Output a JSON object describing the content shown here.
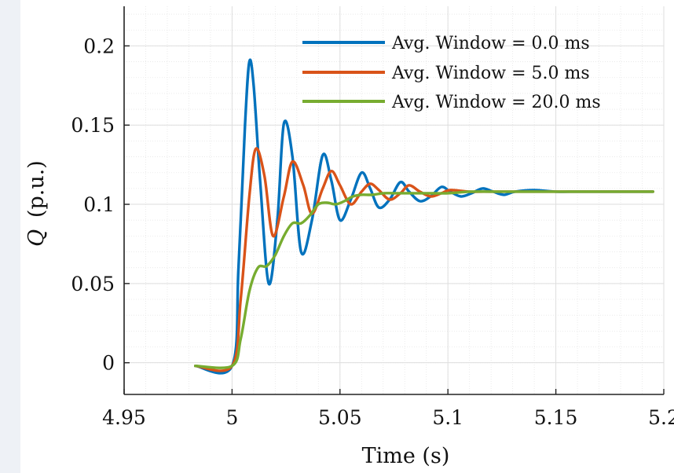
{
  "chart_data": {
    "type": "line",
    "title": "",
    "xlabel": "Time (s)",
    "ylabel_symbol": "Q",
    "ylabel_unit": "(p.u.)",
    "xlim": [
      4.95,
      5.2
    ],
    "ylim": [
      -0.02,
      0.225
    ],
    "xticks": [
      4.95,
      5,
      5.05,
      5.1,
      5.15,
      5.2
    ],
    "xtick_labels": [
      "4.95",
      "5",
      "5.05",
      "5.1",
      "5.15",
      "5.2"
    ],
    "yticks": [
      0,
      0.05,
      0.1,
      0.15,
      0.2
    ],
    "ytick_labels": [
      "0",
      "0.05",
      "0.1",
      "0.15",
      "0.2"
    ],
    "grid": true,
    "legend_position": "top-right",
    "series": [
      {
        "name": "Avg. Window = 0.0 ms",
        "color": "#0072bd",
        "x": [
          4.983,
          5.0,
          5.003,
          5.006,
          5.008,
          5.01,
          5.013,
          5.017,
          5.021,
          5.024,
          5.028,
          5.032,
          5.037,
          5.042,
          5.046,
          5.05,
          5.055,
          5.06,
          5.064,
          5.068,
          5.073,
          5.078,
          5.082,
          5.087,
          5.092,
          5.097,
          5.101,
          5.106,
          5.111,
          5.116,
          5.121,
          5.126,
          5.131,
          5.14,
          5.15,
          5.16,
          5.17,
          5.18,
          5.195
        ],
        "y": [
          -0.002,
          -0.002,
          0.06,
          0.15,
          0.19,
          0.175,
          0.115,
          0.05,
          0.09,
          0.151,
          0.13,
          0.07,
          0.09,
          0.131,
          0.115,
          0.09,
          0.103,
          0.12,
          0.11,
          0.098,
          0.103,
          0.114,
          0.108,
          0.102,
          0.105,
          0.111,
          0.108,
          0.105,
          0.107,
          0.11,
          0.108,
          0.106,
          0.108,
          0.109,
          0.108,
          0.108,
          0.108,
          0.108,
          0.108
        ]
      },
      {
        "name": "Avg. Window = 5.0 ms",
        "color": "#d95319",
        "x": [
          4.983,
          5.0,
          5.004,
          5.008,
          5.011,
          5.015,
          5.019,
          5.024,
          5.028,
          5.033,
          5.037,
          5.042,
          5.046,
          5.05,
          5.055,
          5.06,
          5.064,
          5.068,
          5.073,
          5.078,
          5.082,
          5.087,
          5.092,
          5.097,
          5.101,
          5.11,
          5.12,
          5.13,
          5.14,
          5.15,
          5.16,
          5.17,
          5.18,
          5.195
        ],
        "y": [
          -0.002,
          -0.002,
          0.04,
          0.105,
          0.135,
          0.118,
          0.08,
          0.105,
          0.127,
          0.112,
          0.094,
          0.11,
          0.121,
          0.112,
          0.1,
          0.108,
          0.113,
          0.109,
          0.103,
          0.107,
          0.112,
          0.108,
          0.105,
          0.107,
          0.109,
          0.108,
          0.108,
          0.108,
          0.108,
          0.108,
          0.108,
          0.108,
          0.108,
          0.108
        ]
      },
      {
        "name": "Avg. Window = 20.0 ms",
        "color": "#77ac30",
        "x": [
          4.983,
          5.0,
          5.004,
          5.008,
          5.012,
          5.016,
          5.02,
          5.024,
          5.028,
          5.032,
          5.036,
          5.04,
          5.044,
          5.048,
          5.052,
          5.056,
          5.06,
          5.065,
          5.07,
          5.075,
          5.08,
          5.09,
          5.1,
          5.11,
          5.12,
          5.13,
          5.14,
          5.15,
          5.16,
          5.17,
          5.18,
          5.195
        ],
        "y": [
          -0.002,
          -0.002,
          0.015,
          0.045,
          0.06,
          0.061,
          0.068,
          0.08,
          0.088,
          0.088,
          0.093,
          0.1,
          0.101,
          0.1,
          0.102,
          0.105,
          0.106,
          0.106,
          0.107,
          0.107,
          0.107,
          0.107,
          0.107,
          0.108,
          0.108,
          0.108,
          0.108,
          0.108,
          0.108,
          0.108,
          0.108,
          0.108
        ]
      }
    ]
  }
}
